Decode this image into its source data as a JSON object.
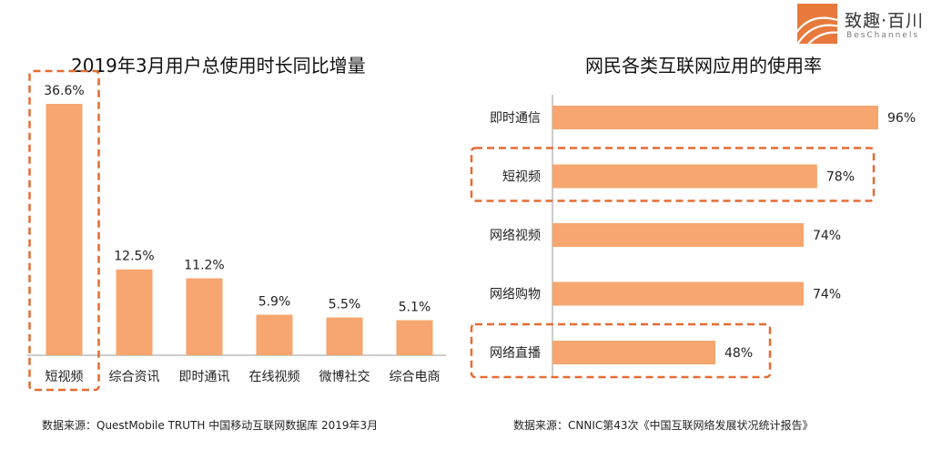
{
  "brand": {
    "name_cn": "致趣·百川",
    "name_en": "BesChannels"
  },
  "colors": {
    "bar": "#F6A66E",
    "highlight": "#E46C35",
    "axis": "#999999",
    "text": "#222222"
  },
  "chart_data": [
    {
      "type": "bar",
      "title": "2019年3月用户总使用时长同比增量",
      "categories": [
        "短视频",
        "综合资讯",
        "即时通讯",
        "在线视频",
        "微博社交",
        "综合电商"
      ],
      "values": [
        36.6,
        12.5,
        11.2,
        5.9,
        5.5,
        5.1
      ],
      "value_labels": [
        "36.6%",
        "12.5%",
        "11.2%",
        "5.9%",
        "5.5%",
        "5.1%"
      ],
      "unit": "%",
      "ylim": [
        0,
        36.6
      ],
      "highlighted": [
        "短视频"
      ],
      "source": "数据来源：QuestMobile TRUTH 中国移动互联网数据库 2019年3月"
    },
    {
      "type": "bar",
      "orientation": "horizontal",
      "title": "网民各类互联网应用的使用率",
      "categories": [
        "即时通信",
        "短视频",
        "网络视频",
        "网络购物",
        "网络直播"
      ],
      "values": [
        96,
        78,
        74,
        74,
        48
      ],
      "value_labels": [
        "96%",
        "78%",
        "74%",
        "74%",
        "48%"
      ],
      "unit": "%",
      "xlim": [
        0,
        100
      ],
      "highlighted": [
        "短视频",
        "网络直播"
      ],
      "source": "数据来源：CNNIC第43次《中国互联网络发展状况统计报告》"
    }
  ]
}
